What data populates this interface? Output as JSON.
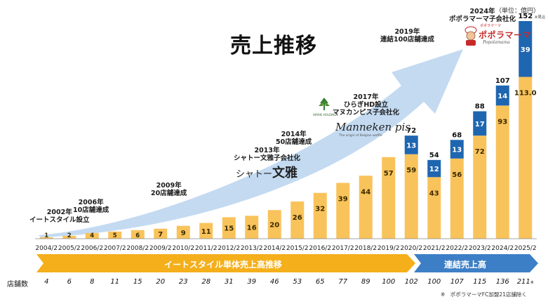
{
  "title": "売上推移",
  "unit_label": "（単位：億円）",
  "chart_data": {
    "type": "bar",
    "title": "売上推移",
    "ylabel": "",
    "xlabel": "",
    "ylim": [
      0,
      152
    ],
    "categories": [
      "2004/2",
      "2005/2",
      "2006/2",
      "2007/2",
      "2008/2",
      "2009/2",
      "2010/2",
      "2011/2",
      "2012/2",
      "2013/2",
      "2014/2",
      "2015/2",
      "2016/2",
      "2017/2",
      "2018/2",
      "2019/2",
      "2020/2",
      "2021/2",
      "2022/2",
      "2023/2",
      "2024/2",
      "2025/2"
    ],
    "series": [
      {
        "name": "",
        "values": [
          1,
          2,
          4,
          5,
          6,
          7,
          9,
          11,
          15,
          16,
          20,
          26,
          32,
          39,
          44,
          57,
          59,
          43,
          56,
          72,
          93,
          113.0
        ],
        "labels": [
          "1",
          "2",
          "4",
          "5",
          "6",
          "7",
          "9",
          "11",
          "15",
          "16",
          "20",
          "26",
          "32",
          "39",
          "44",
          "57",
          "59",
          "43",
          "56",
          "72",
          "93",
          "113.0"
        ]
      },
      {
        "name": "",
        "values": [
          0,
          0,
          0,
          0,
          0,
          0,
          0,
          0,
          0,
          0,
          0,
          0,
          0,
          0,
          0,
          0,
          13,
          12,
          13,
          17,
          14,
          39
        ],
        "labels": [
          "",
          "",
          "",
          "",
          "",
          "",
          "",
          "",
          "",
          "",
          "",
          "",
          "",
          "",
          "",
          "",
          "13",
          "12",
          "13",
          "17",
          "14",
          "39"
        ]
      }
    ],
    "totals": [
      "",
      "",
      "",
      "",
      "",
      "",
      "",
      "",
      "",
      "",
      "",
      "",
      "",
      "",
      "",
      "",
      "72",
      "54",
      "68",
      "88",
      "107",
      "152"
    ],
    "totals_note": "※見込",
    "colors": {
      "base": "#F9C35B",
      "added": "#1F66B1",
      "arrow": "#B9D3EE",
      "band_left": "#F4AF1B",
      "band_right": "#3D7FC6"
    },
    "arrow_direction": "up-right"
  },
  "milestones": [
    {
      "year": "2002年",
      "text": "イートスタイル設立"
    },
    {
      "year": "2006年",
      "text": "10店舗達成"
    },
    {
      "year": "2009年",
      "text": "20店舗達成"
    },
    {
      "year": "2013年",
      "text": "シャトー文雅子会社化"
    },
    {
      "year": "2014年",
      "text": "50店舗達成"
    },
    {
      "year": "2017年",
      "text": "ひらぎHD設立",
      "text2": "マヌカンピス子会社化"
    },
    {
      "year": "2019年",
      "text": "連結100店舗達成"
    },
    {
      "year": "2024年",
      "text": "ポポラマーマ子会社化"
    }
  ],
  "logos": {
    "shato": "シャトー",
    "shato_kanji": "文雅",
    "manneken": "Manneken pis",
    "manneken_sub": "The origin of Belgian waffle",
    "hiraki": "HIRAKI HOLDINGS",
    "popo_top": "ポポラマーマ",
    "popo": "ポポラマーマ",
    "popo_sub": "Popolamama"
  },
  "bands": {
    "left": "イートスタイル単体売上高推移",
    "right": "連結売上高"
  },
  "store_count_label": "店舗数",
  "store_counts": [
    "4",
    "6",
    "8",
    "11",
    "15",
    "20",
    "23",
    "28",
    "31",
    "39",
    "46",
    "53",
    "65",
    "77",
    "89",
    "100",
    "102",
    "100",
    "107",
    "115",
    "136",
    "211"
  ],
  "store_note_mark": "※",
  "footnote": "※　ポポラマーマFC加盟21店舗除く"
}
